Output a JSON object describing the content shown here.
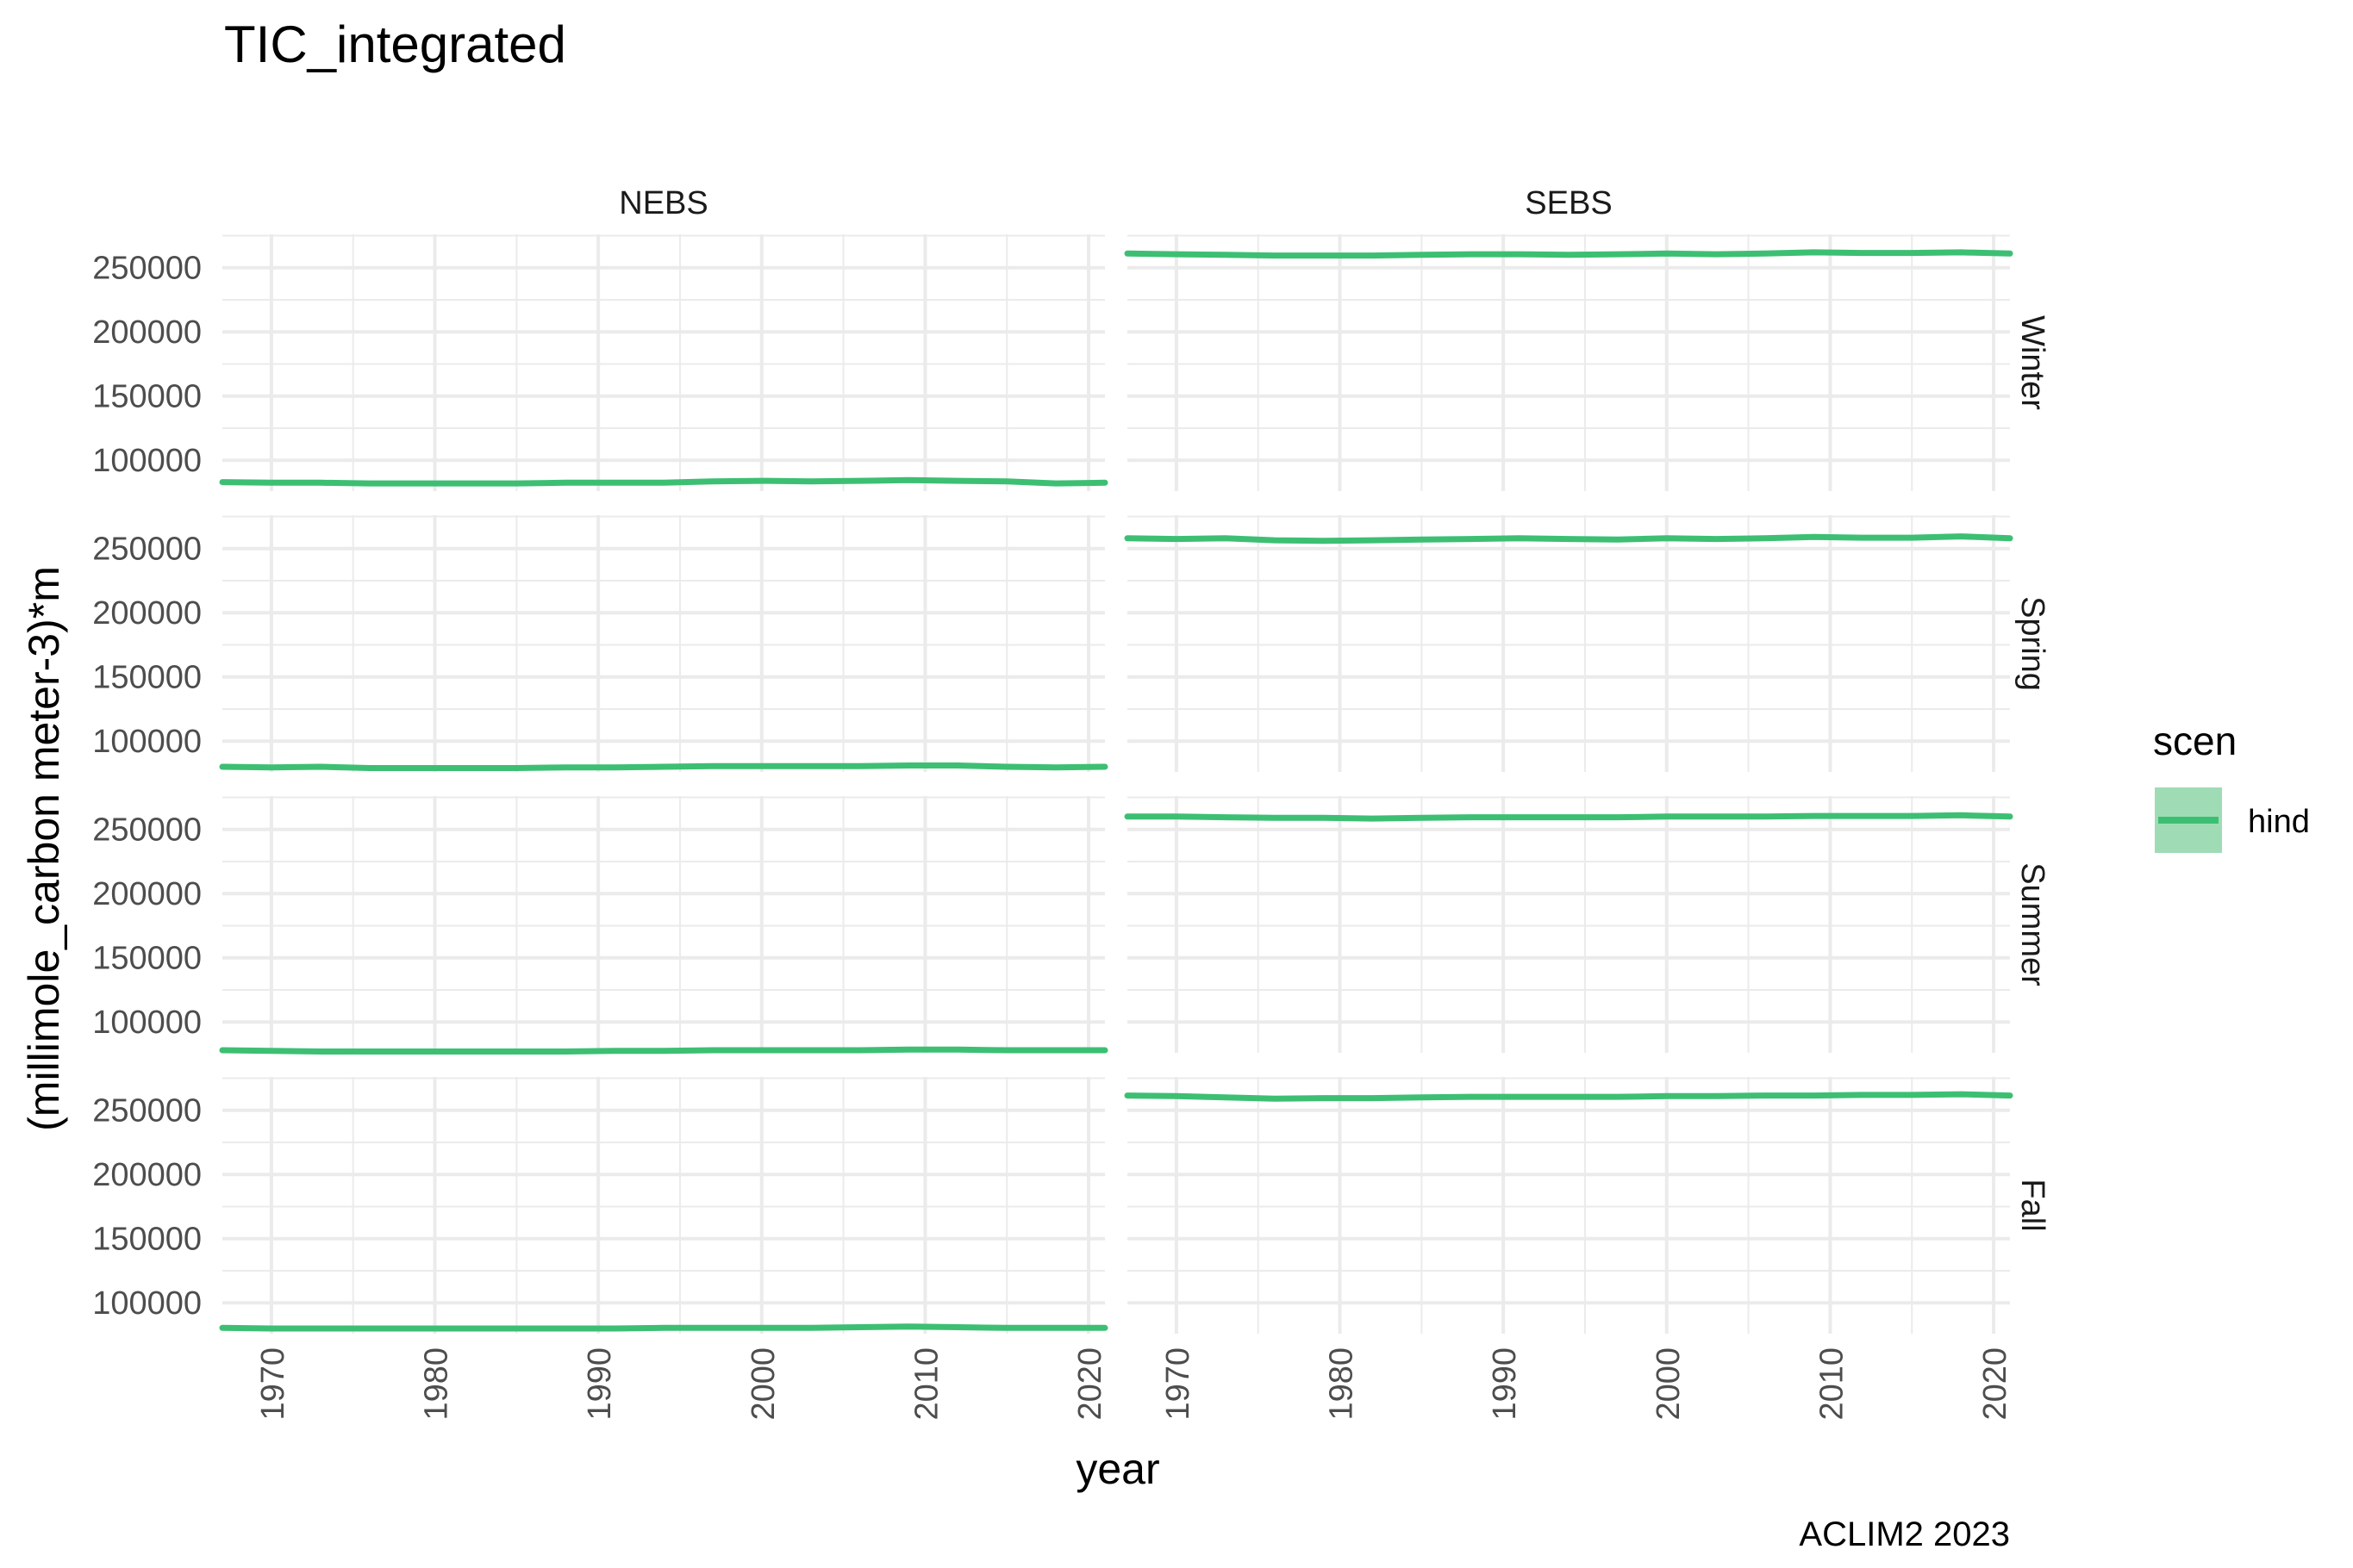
{
  "chart_data": {
    "type": "line",
    "title": "TIC_integrated",
    "xlabel": "year",
    "ylabel": "(millimole_carbon meter-3)*m",
    "caption": "ACLIM2 2023",
    "xlim": [
      1967,
      2021
    ],
    "ylim": [
      76000,
      276000
    ],
    "x_ticks": [
      1970,
      1980,
      1990,
      2000,
      2010,
      2020
    ],
    "y_ticks": [
      100000,
      150000,
      200000,
      250000
    ],
    "x_tick_labels": [
      "1970",
      "1980",
      "1990",
      "2000",
      "2010",
      "2020"
    ],
    "y_tick_labels": [
      "100000",
      "150000",
      "200000",
      "250000"
    ],
    "columns": [
      "NEBS",
      "SEBS"
    ],
    "rows": [
      "Winter",
      "Spring",
      "Summer",
      "Fall"
    ],
    "legend": {
      "title": "scen",
      "entries": [
        "hind"
      ],
      "position": "right"
    },
    "colors": {
      "hind": "#3dbf73",
      "hind_band": "#9fdcb6"
    },
    "grid": true,
    "x": [
      1967,
      1970,
      1973,
      1976,
      1979,
      1982,
      1985,
      1988,
      1991,
      1994,
      1997,
      2000,
      2003,
      2006,
      2009,
      2012,
      2015,
      2018,
      2021
    ],
    "panels": [
      {
        "column": "NEBS",
        "row": "Winter",
        "series": [
          {
            "name": "hind",
            "values": [
              83000,
              82500,
              82500,
              82000,
              82000,
              82000,
              82000,
              82500,
              82500,
              82500,
              83500,
              84000,
              83500,
              84000,
              84500,
              84000,
              83500,
              82000,
              82500
            ]
          }
        ]
      },
      {
        "column": "SEBS",
        "row": "Winter",
        "series": [
          {
            "name": "hind",
            "values": [
              261000,
              260500,
              260000,
              259500,
              259500,
              259500,
              260000,
              260500,
              260500,
              260000,
              260500,
              261000,
              260500,
              261000,
              262000,
              261500,
              261500,
              262000,
              261000
            ]
          }
        ]
      },
      {
        "column": "NEBS",
        "row": "Spring",
        "series": [
          {
            "name": "hind",
            "values": [
              80000,
              79500,
              80000,
              79000,
              79000,
              79000,
              79000,
              79500,
              79500,
              80000,
              80500,
              80500,
              80500,
              80500,
              81000,
              81000,
              80000,
              79500,
              80000
            ]
          }
        ]
      },
      {
        "column": "SEBS",
        "row": "Spring",
        "series": [
          {
            "name": "hind",
            "values": [
              258000,
              257500,
              258000,
              256500,
              256000,
              256500,
              257000,
              257500,
              258000,
              257500,
              257000,
              258000,
              257500,
              258000,
              259000,
              258500,
              258500,
              259500,
              258000
            ]
          }
        ]
      },
      {
        "column": "NEBS",
        "row": "Summer",
        "series": [
          {
            "name": "hind",
            "values": [
              78000,
              77500,
              77000,
              77000,
              77000,
              77000,
              77000,
              77000,
              77500,
              77500,
              78000,
              78000,
              78000,
              78000,
              78500,
              78500,
              78000,
              78000,
              78000
            ]
          }
        ]
      },
      {
        "column": "SEBS",
        "row": "Summer",
        "series": [
          {
            "name": "hind",
            "values": [
              260000,
              260000,
              259500,
              259000,
              259000,
              258500,
              259000,
              259500,
              259500,
              259500,
              259500,
              260000,
              260000,
              260000,
              260500,
              260500,
              260500,
              261000,
              260000
            ]
          }
        ]
      },
      {
        "column": "NEBS",
        "row": "Fall",
        "series": [
          {
            "name": "hind",
            "values": [
              80500,
              80000,
              80000,
              80000,
              80000,
              80000,
              80000,
              80000,
              80000,
              80500,
              80500,
              80500,
              80500,
              81000,
              81500,
              81000,
              80500,
              80500,
              80500
            ]
          }
        ]
      },
      {
        "column": "SEBS",
        "row": "Fall",
        "series": [
          {
            "name": "hind",
            "values": [
              261500,
              261000,
              260000,
              259000,
              259500,
              259500,
              260000,
              260500,
              260500,
              260500,
              260500,
              261000,
              261000,
              261500,
              261500,
              262000,
              262000,
              262500,
              261500
            ]
          }
        ]
      }
    ]
  }
}
